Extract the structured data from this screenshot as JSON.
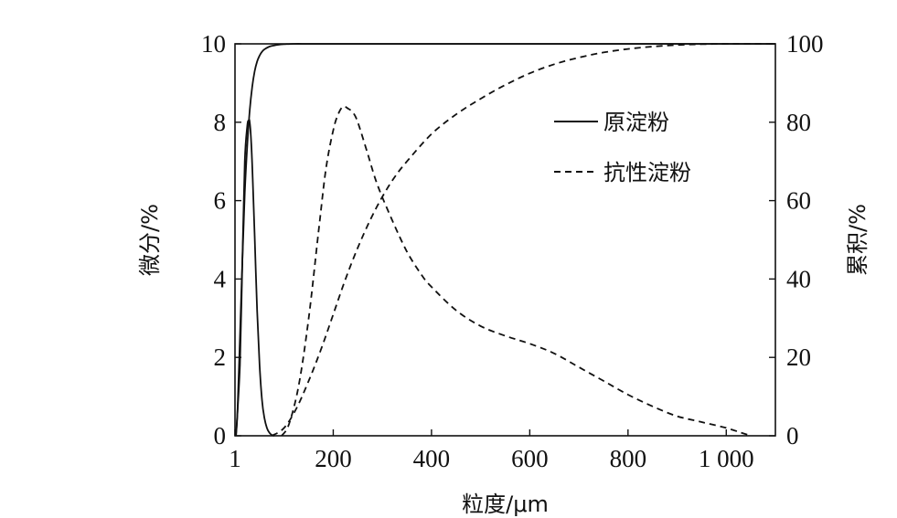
{
  "chart_data": {
    "type": "line",
    "xlabel": "粒度/μm",
    "ylabel_left": "微分/%",
    "ylabel_right": "累积/%",
    "xlim": [
      0,
      1100
    ],
    "ylim_left": [
      0,
      10
    ],
    "ylim_right": [
      0,
      100
    ],
    "x_ticks": [
      {
        "value": 0,
        "label": "1"
      },
      {
        "value": 200,
        "label": "200"
      },
      {
        "value": 400,
        "label": "400"
      },
      {
        "value": 600,
        "label": "600"
      },
      {
        "value": 800,
        "label": "800"
      },
      {
        "value": 1000,
        "label": "1 000"
      }
    ],
    "y_ticks_left": [
      0,
      2,
      4,
      6,
      8,
      10
    ],
    "y_ticks_right": [
      0,
      20,
      40,
      60,
      80,
      100
    ],
    "grid": false,
    "legend": {
      "position": "top-right",
      "entries": [
        {
          "label": "原淀粉",
          "style": "solid"
        },
        {
          "label": "抗性淀粉",
          "style": "dashed"
        }
      ]
    },
    "series": [
      {
        "name": "原淀粉",
        "kind": "differential",
        "axis": "left",
        "style": "solid",
        "x": [
          2,
          10,
          15,
          20,
          25,
          28,
          30,
          33,
          36,
          40,
          45,
          50,
          55,
          60,
          65,
          70,
          75,
          80
        ],
        "y": [
          0,
          1.8,
          4.5,
          7.0,
          7.9,
          8.05,
          8.0,
          7.5,
          6.6,
          5.1,
          3.2,
          1.8,
          0.9,
          0.45,
          0.2,
          0.08,
          0.02,
          0
        ]
      },
      {
        "name": "原淀粉",
        "kind": "cumulative",
        "axis": "right",
        "style": "solid",
        "x": [
          2,
          5,
          10,
          15,
          20,
          25,
          30,
          35,
          40,
          45,
          50,
          55,
          60,
          70,
          80,
          90,
          100,
          120,
          150,
          200,
          400,
          600,
          800,
          1000,
          1100
        ],
        "y": [
          0,
          6,
          25,
          45,
          62,
          74,
          83,
          89,
          93,
          95.5,
          97,
          98,
          98.6,
          99.3,
          99.6,
          99.8,
          99.9,
          100,
          100,
          100,
          100,
          100,
          100,
          100,
          100
        ]
      },
      {
        "name": "抗性淀粉",
        "kind": "differential",
        "axis": "left",
        "style": "dashed",
        "x": [
          95,
          110,
          130,
          150,
          170,
          185,
          200,
          210,
          220,
          230,
          240,
          250,
          270,
          290,
          320,
          350,
          380,
          400,
          450,
          500,
          550,
          600,
          650,
          700,
          750,
          800,
          850,
          900,
          950,
          1000,
          1030,
          1050
        ],
        "y": [
          0,
          0.3,
          1.3,
          3.0,
          5.2,
          6.8,
          7.8,
          8.2,
          8.4,
          8.35,
          8.25,
          8.0,
          7.2,
          6.4,
          5.5,
          4.7,
          4.1,
          3.8,
          3.2,
          2.8,
          2.55,
          2.35,
          2.1,
          1.75,
          1.4,
          1.05,
          0.75,
          0.5,
          0.35,
          0.2,
          0.08,
          0
        ]
      },
      {
        "name": "抗性淀粉",
        "kind": "cumulative",
        "axis": "right",
        "style": "dashed",
        "x": [
          75,
          100,
          125,
          150,
          175,
          200,
          225,
          250,
          275,
          300,
          325,
          350,
          400,
          450,
          500,
          550,
          600,
          650,
          700,
          750,
          800,
          850,
          900,
          950,
          1000,
          1050,
          1100
        ],
        "y": [
          0,
          2,
          7,
          14,
          22,
          31,
          40,
          48,
          55,
          61,
          66,
          70,
          77,
          82,
          86,
          89.5,
          92.5,
          94.8,
          96.5,
          97.8,
          98.7,
          99.3,
          99.7,
          99.9,
          100,
          100,
          100
        ]
      }
    ]
  }
}
